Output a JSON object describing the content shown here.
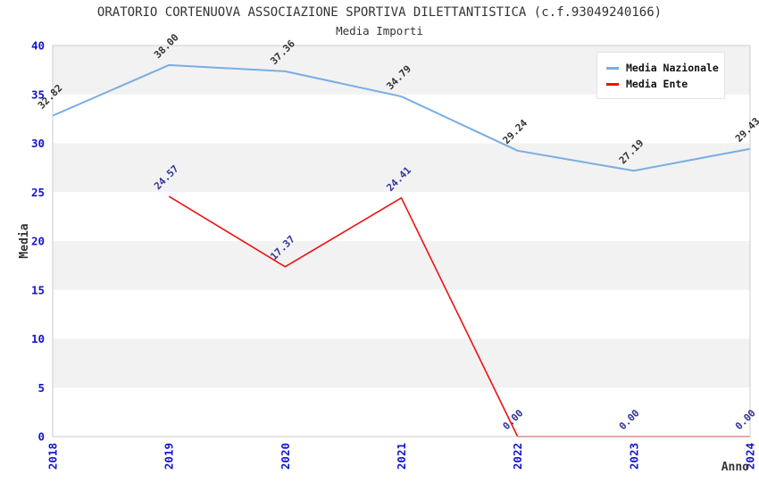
{
  "title": "ORATORIO CORTENUOVA ASSOCIAZIONE SPORTIVA DILETTANTISTICA (c.f.93049240166)",
  "subtitle": "Media Importi",
  "legend": {
    "position": "top-right",
    "items": [
      {
        "label": "Media Nazionale",
        "color": "#7aade3"
      },
      {
        "label": "Media Ente",
        "color": "#ee1111"
      }
    ]
  },
  "chart_data": {
    "type": "line",
    "title": "ORATORIO CORTENUOVA ASSOCIAZIONE SPORTIVA DILETTANTISTICA (c.f.93049240166)",
    "subtitle": "Media Importi",
    "x": [
      "2018",
      "2019",
      "2020",
      "2021",
      "2022",
      "2023",
      "2024"
    ],
    "xlabel": "Anno",
    "ylabel": "Media",
    "ylim": [
      0,
      40
    ],
    "ytick_step": 5,
    "yticks": [
      0,
      5,
      10,
      15,
      20,
      25,
      30,
      35,
      40
    ],
    "grid": "horizontal-bands",
    "legend_position": "top-right",
    "series": [
      {
        "id": "media-nazionale",
        "name": "Media Nazionale",
        "color": "#7aade3",
        "label_color": "#333333",
        "width": 2,
        "values": [
          32.82,
          38.0,
          37.36,
          34.79,
          29.24,
          27.19,
          29.43
        ]
      },
      {
        "id": "media-ente",
        "name": "Media Ente",
        "color": "#ee1111",
        "label_color": "#333399",
        "width": 1.6,
        "values": [
          null,
          24.57,
          17.37,
          24.41,
          0.0,
          0.0,
          0.0
        ]
      }
    ],
    "colors": {
      "band": "#f2f2f2",
      "band_alt": "#ffffff",
      "border": "#cccccc",
      "tick": "#1414cc",
      "axis_title": "#333333"
    }
  }
}
